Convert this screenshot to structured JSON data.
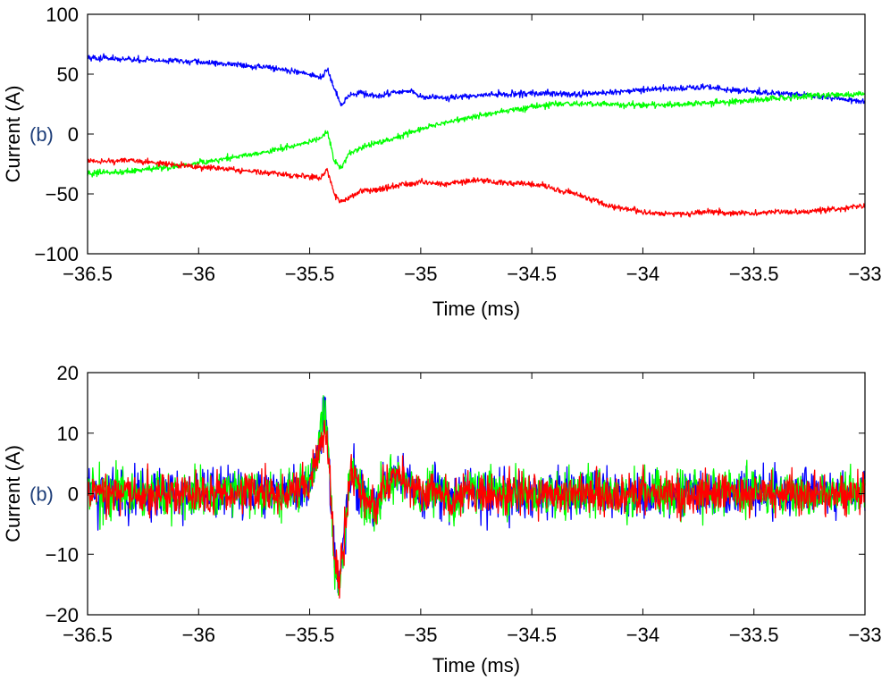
{
  "chart_data": [
    {
      "type": "line",
      "panel_label": "(b)",
      "xlabel": "Time (ms)",
      "ylabel": "Current (A)",
      "xlim": [
        -36.5,
        -33
      ],
      "ylim": [
        -100,
        100
      ],
      "xticks": [
        -36.5,
        -36,
        -35.5,
        -35,
        -34.5,
        -34,
        -33.5,
        -33
      ],
      "xtick_labels": [
        "−36.5",
        "−36",
        "−35.5",
        "−35",
        "−34.5",
        "−34",
        "−33.5",
        "−33"
      ],
      "yticks": [
        100,
        50,
        0,
        -50,
        -100
      ],
      "ytick_labels": [
        "100",
        "50",
        "0",
        "−50",
        "−100"
      ],
      "grid": false,
      "series": [
        {
          "color": "#0000ff",
          "x": [
            -36.5,
            -36.3,
            -36.1,
            -35.9,
            -35.7,
            -35.55,
            -35.45,
            -35.42,
            -35.39,
            -35.36,
            -35.32,
            -35.27,
            -35.2,
            -35.12,
            -35.05,
            -35.0,
            -34.9,
            -34.8,
            -34.7,
            -34.5,
            -34.3,
            -34.1,
            -33.9,
            -33.7,
            -33.5,
            -33.3,
            -33.1,
            -33.0
          ],
          "y": [
            64,
            62,
            61,
            59,
            56,
            52,
            47,
            54,
            38,
            24,
            32,
            35,
            31,
            35,
            36,
            31,
            30,
            31,
            33,
            34,
            33,
            35,
            38,
            39,
            35,
            33,
            29,
            27
          ]
        },
        {
          "color": "#00ff00",
          "x": [
            -36.5,
            -36.3,
            -36.1,
            -35.9,
            -35.7,
            -35.55,
            -35.45,
            -35.42,
            -35.39,
            -35.36,
            -35.32,
            -35.25,
            -35.15,
            -35.05,
            -34.95,
            -34.8,
            -34.6,
            -34.4,
            -34.2,
            -34.0,
            -33.8,
            -33.6,
            -33.4,
            -33.2,
            -33.0
          ],
          "y": [
            -33,
            -31,
            -27,
            -21,
            -15,
            -9,
            -4,
            2,
            -22,
            -28,
            -16,
            -10,
            -5,
            1,
            7,
            13,
            20,
            25,
            25,
            24,
            25,
            27,
            30,
            32,
            34
          ]
        },
        {
          "color": "#ff0000",
          "x": [
            -36.5,
            -36.3,
            -36.1,
            -35.9,
            -35.7,
            -35.55,
            -35.45,
            -35.42,
            -35.39,
            -35.36,
            -35.32,
            -35.27,
            -35.2,
            -35.1,
            -35.0,
            -34.9,
            -34.75,
            -34.6,
            -34.45,
            -34.3,
            -34.15,
            -34.0,
            -33.9,
            -33.7,
            -33.5,
            -33.3,
            -33.1,
            -33.0
          ],
          "y": [
            -23,
            -22,
            -26,
            -29,
            -32,
            -35,
            -36,
            -30,
            -50,
            -57,
            -52,
            -47,
            -47,
            -43,
            -40,
            -42,
            -38,
            -41,
            -43,
            -50,
            -60,
            -65,
            -67,
            -65,
            -66,
            -65,
            -62,
            -60
          ]
        }
      ]
    },
    {
      "type": "line",
      "panel_label": "(b)",
      "xlabel": "Time (ms)",
      "ylabel": "Current (A)",
      "xlim": [
        -36.5,
        -33
      ],
      "ylim": [
        -20,
        20
      ],
      "xticks": [
        -36.5,
        -36,
        -35.5,
        -35,
        -34.5,
        -34,
        -33.5,
        -33
      ],
      "xtick_labels": [
        "−36.5",
        "−36",
        "−35.5",
        "−35",
        "−34.5",
        "−34",
        "−33.5",
        "−33"
      ],
      "yticks": [
        20,
        10,
        0,
        -10,
        -20
      ],
      "ytick_labels": [
        "20",
        "10",
        "0",
        "−10",
        "−20"
      ],
      "grid": false,
      "series": [
        {
          "color": "#0000ff",
          "x": [
            -36.5,
            -35.6,
            -35.5,
            -35.46,
            -35.43,
            -35.41,
            -35.39,
            -35.37,
            -35.35,
            -35.32,
            -35.3,
            -35.25,
            -35.2,
            -35.15,
            -35.1,
            -35.05,
            -35.0,
            -34.95,
            -34.9,
            -34.85,
            -34.8,
            -34.7,
            -34.6,
            -33.0
          ],
          "y": [
            0,
            0,
            2,
            8,
            14,
            4,
            -10,
            -15,
            -9,
            2,
            3,
            -1,
            -2,
            2,
            3,
            1,
            -1,
            1,
            0,
            -2,
            1,
            0,
            0,
            0
          ]
        },
        {
          "color": "#00ff00",
          "x": [
            -36.5,
            -35.6,
            -35.5,
            -35.46,
            -35.43,
            -35.41,
            -35.39,
            -35.37,
            -35.35,
            -35.32,
            -35.3,
            -35.25,
            -35.2,
            -35.15,
            -35.1,
            -35.05,
            -35.0,
            -34.95,
            -34.9,
            -34.85,
            -34.8,
            -34.7,
            -34.6,
            -33.0
          ],
          "y": [
            0,
            0,
            2,
            8,
            14,
            3,
            -11,
            -16,
            -10,
            2,
            3,
            -1,
            -2,
            2,
            3,
            1,
            -1,
            1,
            0,
            -2,
            1,
            0,
            0,
            0
          ]
        },
        {
          "color": "#ff0000",
          "x": [
            -36.5,
            -35.6,
            -35.5,
            -35.46,
            -35.43,
            -35.41,
            -35.39,
            -35.37,
            -35.35,
            -35.32,
            -35.3,
            -35.25,
            -35.2,
            -35.15,
            -35.1,
            -35.05,
            -35.0,
            -34.95,
            -34.9,
            -34.85,
            -34.8,
            -34.7,
            -34.6,
            -33.0
          ],
          "y": [
            0,
            0,
            2,
            7,
            11,
            3,
            -10,
            -14,
            -9,
            2,
            3,
            -1,
            -2,
            2,
            3,
            1,
            -1,
            1,
            0,
            -2,
            1,
            0,
            0,
            0
          ]
        }
      ]
    }
  ]
}
